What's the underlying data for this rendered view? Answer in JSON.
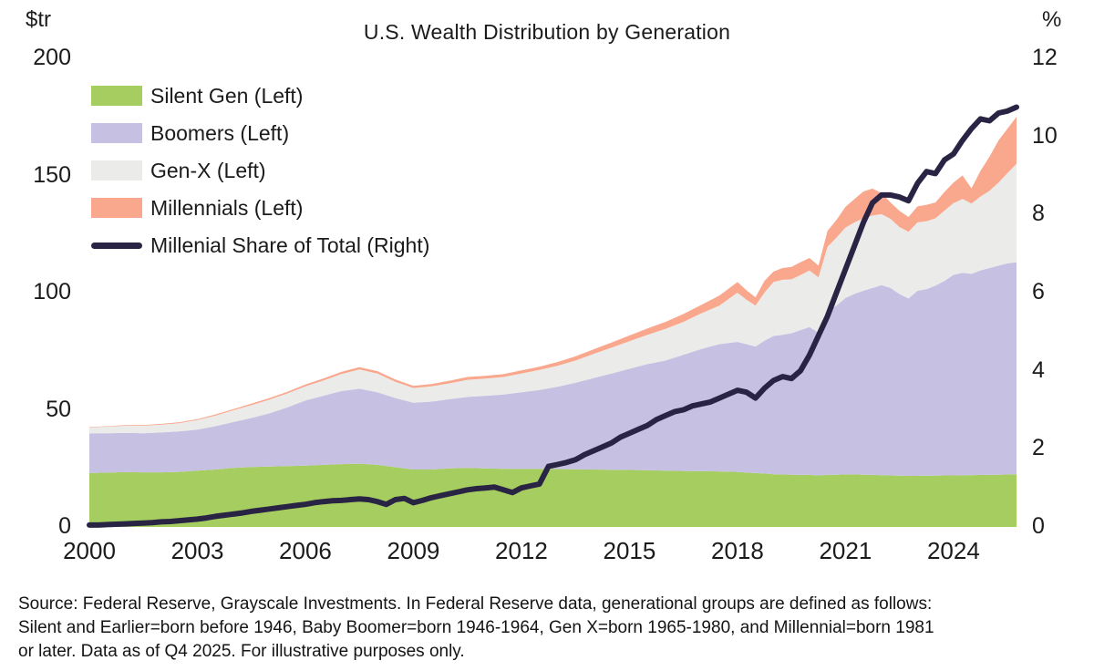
{
  "title": "U.S. Wealth Distribution by Generation",
  "colors": {
    "silent": "#a5cd60",
    "boomers": "#c6c0e2",
    "genx": "#ebebea",
    "millennials": "#f9a78d",
    "line": "#2a2444",
    "text": "#1b1b1b",
    "background": "#ffffff"
  },
  "legend": {
    "items": [
      {
        "label": "Silent Gen (Left)",
        "swatch": "area",
        "color_key": "silent"
      },
      {
        "label": "Boomers (Left)",
        "swatch": "area",
        "color_key": "boomers"
      },
      {
        "label": "Gen-X (Left)",
        "swatch": "area",
        "color_key": "genx"
      },
      {
        "label": "Millennials (Left)",
        "swatch": "area",
        "color_key": "millennials"
      },
      {
        "label": "Millenial Share of Total (Right)",
        "swatch": "line",
        "color_key": "line"
      }
    ]
  },
  "source": {
    "lines": [
      "Source: Federal Reserve, Grayscale Investments. In Federal Reserve data, generational groups are defined as follows:",
      "Silent and Earlier=born before 1946, Baby Boomer=born 1946-1964, Gen X=born 1965-1980, and Millennial=born 1981",
      "or later. Data as of Q4 2025. For illustrative purposes only."
    ]
  },
  "chart_data": {
    "type": "stacked-area+line",
    "title": "U.S. Wealth Distribution by Generation",
    "left_axis": {
      "unit": "$tr",
      "ticks": [
        200,
        150,
        100,
        50,
        0
      ],
      "range": [
        0,
        200
      ]
    },
    "right_axis": {
      "unit": "%",
      "ticks": [
        12,
        10,
        8,
        6,
        4,
        2,
        0
      ],
      "range": [
        0,
        12
      ]
    },
    "x_axis": {
      "ticks": [
        2000,
        2003,
        2006,
        2009,
        2012,
        2015,
        2018,
        2021,
        2024
      ],
      "range": [
        2000,
        2025.75
      ]
    },
    "x_years": [
      2000,
      2000.5,
      2001,
      2001.5,
      2002,
      2002.5,
      2003,
      2003.5,
      2004,
      2004.5,
      2005,
      2005.5,
      2006,
      2006.5,
      2007,
      2007.5,
      2008,
      2008.5,
      2009,
      2009.5,
      2010,
      2010.5,
      2011,
      2011.5,
      2012,
      2012.5,
      2013,
      2013.5,
      2014,
      2014.5,
      2015,
      2015.5,
      2016,
      2016.5,
      2017,
      2017.5,
      2018,
      2018.25,
      2018.5,
      2018.75,
      2019,
      2019.25,
      2019.5,
      2019.75,
      2020,
      2020.25,
      2020.5,
      2020.75,
      2021,
      2021.25,
      2021.5,
      2021.75,
      2022,
      2022.25,
      2022.5,
      2022.75,
      2023,
      2023.25,
      2023.5,
      2023.75,
      2024,
      2024.25,
      2024.5,
      2024.75,
      2025,
      2025.25,
      2025.5,
      2025.75
    ],
    "series": [
      {
        "name": "Silent Gen (Left)",
        "axis": "left",
        "color_key": "silent",
        "values": [
          23.0,
          23.2,
          23.4,
          23.3,
          23.3,
          23.5,
          24.0,
          24.5,
          25.2,
          25.6,
          25.8,
          26.0,
          26.2,
          26.5,
          26.8,
          27.0,
          26.5,
          25.5,
          24.5,
          24.5,
          25.0,
          25.2,
          25.0,
          24.8,
          24.8,
          24.8,
          24.7,
          24.6,
          24.5,
          24.4,
          24.3,
          24.2,
          24.0,
          23.9,
          23.8,
          23.7,
          23.5,
          23.2,
          23.0,
          22.8,
          22.5,
          22.4,
          22.3,
          22.2,
          22.2,
          22.0,
          22.2,
          22.3,
          22.4,
          22.4,
          22.3,
          22.2,
          22.1,
          22.0,
          21.9,
          21.8,
          21.8,
          21.9,
          21.9,
          22.0,
          22.0,
          22.1,
          22.1,
          22.2,
          22.2,
          22.3,
          22.4,
          22.5
        ]
      },
      {
        "name": "Boomers (Left)",
        "axis": "left",
        "color_key": "boomers",
        "values": [
          17.0,
          16.8,
          16.8,
          16.7,
          17.0,
          17.3,
          17.5,
          18.5,
          19.6,
          20.9,
          22.7,
          25.0,
          27.8,
          29.5,
          31.2,
          32.0,
          31.0,
          29.5,
          28.5,
          29.0,
          29.5,
          30.3,
          31.0,
          31.7,
          32.7,
          33.7,
          35.1,
          36.9,
          39.0,
          41.1,
          43.2,
          45.3,
          47.0,
          49.6,
          52.2,
          54.3,
          55.5,
          54.8,
          54.0,
          56.7,
          59.0,
          59.6,
          60.4,
          61.8,
          63.1,
          61.0,
          69.5,
          72.2,
          75.3,
          77.1,
          78.5,
          79.8,
          81.1,
          80.0,
          77.5,
          75.7,
          79.0,
          79.6,
          81.1,
          83.0,
          85.6,
          86.4,
          85.9,
          87.3,
          88.3,
          89.2,
          90.1,
          90.5
        ]
      },
      {
        "name": "Gen-X (Left)",
        "axis": "left",
        "color_key": "genx",
        "values": [
          2.5,
          2.8,
          3.0,
          3.2,
          3.4,
          3.5,
          4.1,
          4.5,
          5.0,
          5.5,
          5.8,
          6.0,
          6.0,
          6.5,
          7.3,
          8.2,
          8.0,
          7.0,
          6.3,
          6.5,
          6.8,
          7.3,
          7.3,
          7.5,
          8.0,
          8.5,
          9.0,
          9.5,
          10.3,
          11.0,
          11.8,
          12.5,
          13.5,
          14.0,
          15.2,
          16.5,
          21.0,
          19.0,
          17.5,
          20.5,
          23.0,
          23.5,
          23.0,
          23.5,
          24.2,
          23.5,
          27.9,
          29.0,
          30.1,
          30.5,
          30.9,
          30.9,
          30.3,
          29.5,
          28.6,
          28.5,
          29.2,
          29.0,
          28.7,
          30.0,
          30.6,
          31.5,
          30.0,
          31.5,
          33.0,
          35.5,
          38.5,
          42.0
        ]
      },
      {
        "name": "Millennials (Left)",
        "axis": "left",
        "color_key": "millennials",
        "values": [
          0.2,
          0.2,
          0.3,
          0.3,
          0.3,
          0.4,
          0.4,
          0.5,
          0.5,
          0.6,
          0.7,
          0.7,
          0.8,
          0.9,
          0.9,
          1.0,
          1.0,
          0.9,
          0.9,
          1.0,
          1.1,
          1.2,
          1.2,
          1.2,
          1.3,
          1.4,
          1.6,
          1.8,
          2.0,
          2.2,
          2.4,
          2.7,
          3.0,
          3.4,
          3.6,
          4.3,
          4.5,
          4.0,
          3.5,
          5.0,
          4.5,
          5.0,
          5.3,
          5.5,
          5.3,
          5.0,
          6.8,
          7.5,
          8.8,
          10.0,
          11.5,
          11.5,
          9.0,
          7.0,
          6.9,
          6.3,
          6.8,
          7.0,
          6.8,
          8.0,
          8.8,
          10.0,
          6.5,
          11.0,
          14.5,
          18.0,
          19.0,
          20.0
        ]
      }
    ],
    "line_series": {
      "name": "Millenial Share of Total (Right)",
      "axis": "right",
      "color_key": "line",
      "x": [
        2000,
        2000.25,
        2000.5,
        2000.75,
        2001,
        2001.25,
        2001.5,
        2001.75,
        2002,
        2002.25,
        2002.5,
        2002.75,
        2003,
        2003.25,
        2003.5,
        2003.75,
        2004,
        2004.25,
        2004.5,
        2004.75,
        2005,
        2005.25,
        2005.5,
        2005.75,
        2006,
        2006.25,
        2006.5,
        2006.75,
        2007,
        2007.25,
        2007.5,
        2007.75,
        2008,
        2008.25,
        2008.5,
        2008.75,
        2009,
        2009.25,
        2009.5,
        2009.75,
        2010,
        2010.25,
        2010.5,
        2010.75,
        2011,
        2011.25,
        2011.5,
        2011.75,
        2012,
        2012.25,
        2012.5,
        2012.75,
        2013,
        2013.25,
        2013.5,
        2013.75,
        2014,
        2014.25,
        2014.5,
        2014.75,
        2015,
        2015.25,
        2015.5,
        2015.75,
        2016,
        2016.25,
        2016.5,
        2016.75,
        2017,
        2017.25,
        2017.5,
        2017.75,
        2018,
        2018.25,
        2018.5,
        2018.75,
        2019,
        2019.25,
        2019.5,
        2019.75,
        2020,
        2020.25,
        2020.5,
        2020.75,
        2021,
        2021.25,
        2021.5,
        2021.75,
        2022,
        2022.25,
        2022.5,
        2022.75,
        2023,
        2023.25,
        2023.5,
        2023.75,
        2024,
        2024.25,
        2024.5,
        2024.75,
        2025,
        2025.25,
        2025.5,
        2025.75
      ],
      "values": [
        0.05,
        0.05,
        0.06,
        0.07,
        0.08,
        0.09,
        0.1,
        0.11,
        0.13,
        0.14,
        0.16,
        0.18,
        0.2,
        0.23,
        0.27,
        0.3,
        0.33,
        0.36,
        0.4,
        0.43,
        0.46,
        0.49,
        0.52,
        0.55,
        0.58,
        0.62,
        0.65,
        0.67,
        0.68,
        0.7,
        0.72,
        0.7,
        0.65,
        0.58,
        0.7,
        0.73,
        0.62,
        0.68,
        0.75,
        0.8,
        0.85,
        0.9,
        0.95,
        0.98,
        1.0,
        1.02,
        0.95,
        0.88,
        1.0,
        1.05,
        1.1,
        1.55,
        1.6,
        1.65,
        1.72,
        1.85,
        1.95,
        2.05,
        2.15,
        2.3,
        2.4,
        2.5,
        2.6,
        2.75,
        2.85,
        2.95,
        3.0,
        3.1,
        3.15,
        3.2,
        3.3,
        3.4,
        3.5,
        3.45,
        3.3,
        3.55,
        3.75,
        3.85,
        3.8,
        4.0,
        4.4,
        4.9,
        5.4,
        6.0,
        6.6,
        7.2,
        7.8,
        8.3,
        8.5,
        8.5,
        8.45,
        8.35,
        8.8,
        9.1,
        9.05,
        9.4,
        9.55,
        9.9,
        10.2,
        10.45,
        10.4,
        10.6,
        10.65,
        10.75
      ]
    }
  }
}
